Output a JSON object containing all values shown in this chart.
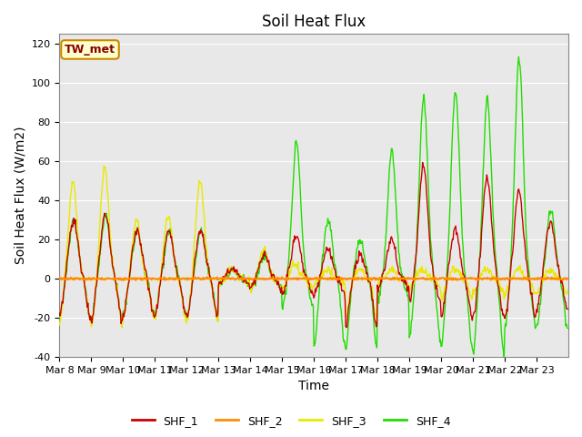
{
  "title": "Soil Heat Flux",
  "ylabel": "Soil Heat Flux (W/m2)",
  "xlabel": "Time",
  "ylim": [
    -40,
    125
  ],
  "bg_color": "#e8e8e8",
  "line_colors": {
    "SHF_1": "#cc0000",
    "SHF_2": "#ff8c00",
    "SHF_3": "#e8e800",
    "SHF_4": "#22dd00"
  },
  "xtick_labels": [
    "Mar 8",
    "Mar 9",
    "Mar 10",
    "Mar 11",
    "Mar 12",
    "Mar 13",
    "Mar 14",
    "Mar 15",
    "Mar 16",
    "Mar 17",
    "Mar 18",
    "Mar 19",
    "Mar 20",
    "Mar 21",
    "Mar 22",
    "Mar 23"
  ],
  "ytick_values": [
    -40,
    -20,
    0,
    20,
    40,
    60,
    80,
    100,
    120
  ],
  "annotation_text": "TW_met",
  "annotation_bbox_facecolor": "#ffffcc",
  "annotation_bbox_edgecolor": "#cc8800",
  "annotation_text_color": "#880000",
  "legend_entries": [
    "SHF_1",
    "SHF_2",
    "SHF_3",
    "SHF_4"
  ],
  "title_fontsize": 12,
  "label_fontsize": 10,
  "tick_fontsize": 8
}
